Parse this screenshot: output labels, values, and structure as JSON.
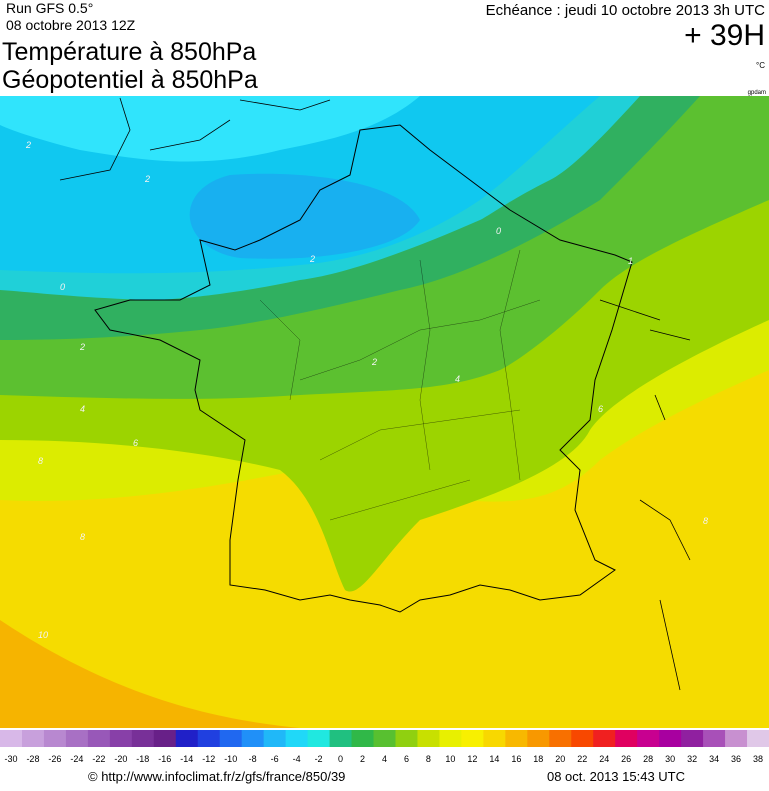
{
  "header": {
    "run": "Run GFS 0.5°",
    "date": "08 octobre 2013 12Z",
    "title1": "Température à 850hPa",
    "title2": "Géopotentiel à 850hPa",
    "valid": "Echéance : jeudi 10 octobre 2013 3h UTC",
    "lead": "+ 39H",
    "unit": "°C",
    "source_tag": "gpdam"
  },
  "map": {
    "contour_labels": [
      "2",
      "2",
      "2",
      "0",
      "0",
      "2",
      "2",
      "4",
      "4",
      "6",
      "8",
      "8",
      "10",
      "1",
      "6",
      "8"
    ]
  },
  "legend": {
    "ticks": [
      -30,
      -28,
      -26,
      -24,
      -22,
      -20,
      -18,
      -16,
      -14,
      -12,
      -10,
      -8,
      -6,
      -4,
      -2,
      0,
      2,
      4,
      6,
      8,
      10,
      12,
      14,
      16,
      18,
      20,
      22,
      24,
      26,
      28,
      30,
      32,
      34,
      36,
      38
    ],
    "colors": [
      "#d8b8e8",
      "#c8a0dc",
      "#b888d0",
      "#a870c4",
      "#9858b8",
      "#8840a8",
      "#783098",
      "#682088",
      "#2020c8",
      "#2040e0",
      "#2068f0",
      "#2090f8",
      "#20b8f8",
      "#20d8f8",
      "#20e8e0",
      "#20c080",
      "#30b848",
      "#58c030",
      "#90d010",
      "#c8e000",
      "#e8f000",
      "#f8f000",
      "#f8d800",
      "#f8b800",
      "#f89800",
      "#f87000",
      "#f84800",
      "#f02020",
      "#e00060",
      "#c80090",
      "#a800a0",
      "#9020a0",
      "#a850b8",
      "#c890d0",
      "#e0c8e8"
    ]
  },
  "footer": {
    "url": "© http://www.infoclimat.fr/z/gfs/france/850/39",
    "stamp": "08 oct. 2013 15:43 UTC"
  }
}
